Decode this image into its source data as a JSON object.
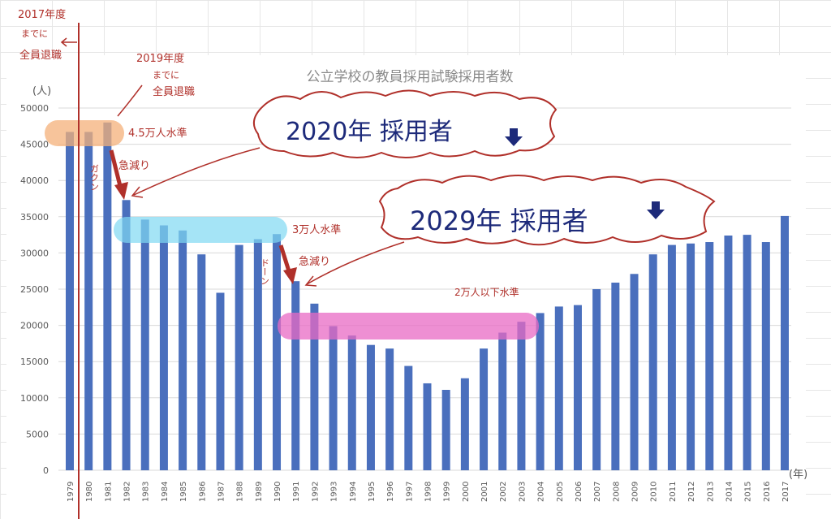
{
  "chart_data": {
    "type": "bar",
    "title": "公立学校の教員採用試験採用者数",
    "ylabel": "(人)",
    "xlabel": "(年)",
    "ylim": [
      0,
      50000
    ],
    "yticks": [
      0,
      5000,
      10000,
      15000,
      20000,
      25000,
      30000,
      35000,
      40000,
      45000,
      50000
    ],
    "grid": true,
    "bar_color": "#4a6fbd",
    "categories": [
      "1979",
      "1980",
      "1981",
      "1982",
      "1983",
      "1984",
      "1985",
      "1986",
      "1987",
      "1988",
      "1989",
      "1990",
      "1991",
      "1992",
      "1993",
      "1994",
      "1995",
      "1996",
      "1997",
      "1998",
      "1999",
      "2000",
      "2001",
      "2002",
      "2003",
      "2004",
      "2005",
      "2006",
      "2007",
      "2008",
      "2009",
      "2010",
      "2011",
      "2012",
      "2013",
      "2014",
      "2015",
      "2016",
      "2017"
    ],
    "values": [
      46700,
      46700,
      48000,
      37300,
      34600,
      33800,
      33100,
      29800,
      24500,
      31100,
      31900,
      32600,
      26100,
      23000,
      19900,
      18600,
      17300,
      16800,
      14400,
      12000,
      11100,
      12700,
      16800,
      19000,
      20500,
      21700,
      22600,
      22800,
      25000,
      25900,
      27100,
      29800,
      31100,
      31300,
      31500,
      32400,
      32500,
      31500,
      35100
    ]
  },
  "annotations": {
    "left_note": [
      "2017年度",
      "までに",
      "全員退職"
    ],
    "mid_note": [
      "2019年度",
      "までに",
      "全員退職"
    ],
    "level_45k": "4.5万人水準",
    "sharp_drop_1": "急減り",
    "gakun": "ガクン",
    "level_30k": "3万人水準",
    "sharp_drop_2": "急減り",
    "doon": "ドーン",
    "level_20k": "2万人以下水準",
    "bubble_2020": "2020年 採用者",
    "bubble_2029": "2029年 採用者",
    "colors": {
      "handwriting": "#b0302a",
      "bubble_text": "#1d2a7a",
      "highlight_orange": "#f4b07a",
      "highlight_blue": "#7fd8f2",
      "highlight_pink": "#e86ac4"
    }
  }
}
